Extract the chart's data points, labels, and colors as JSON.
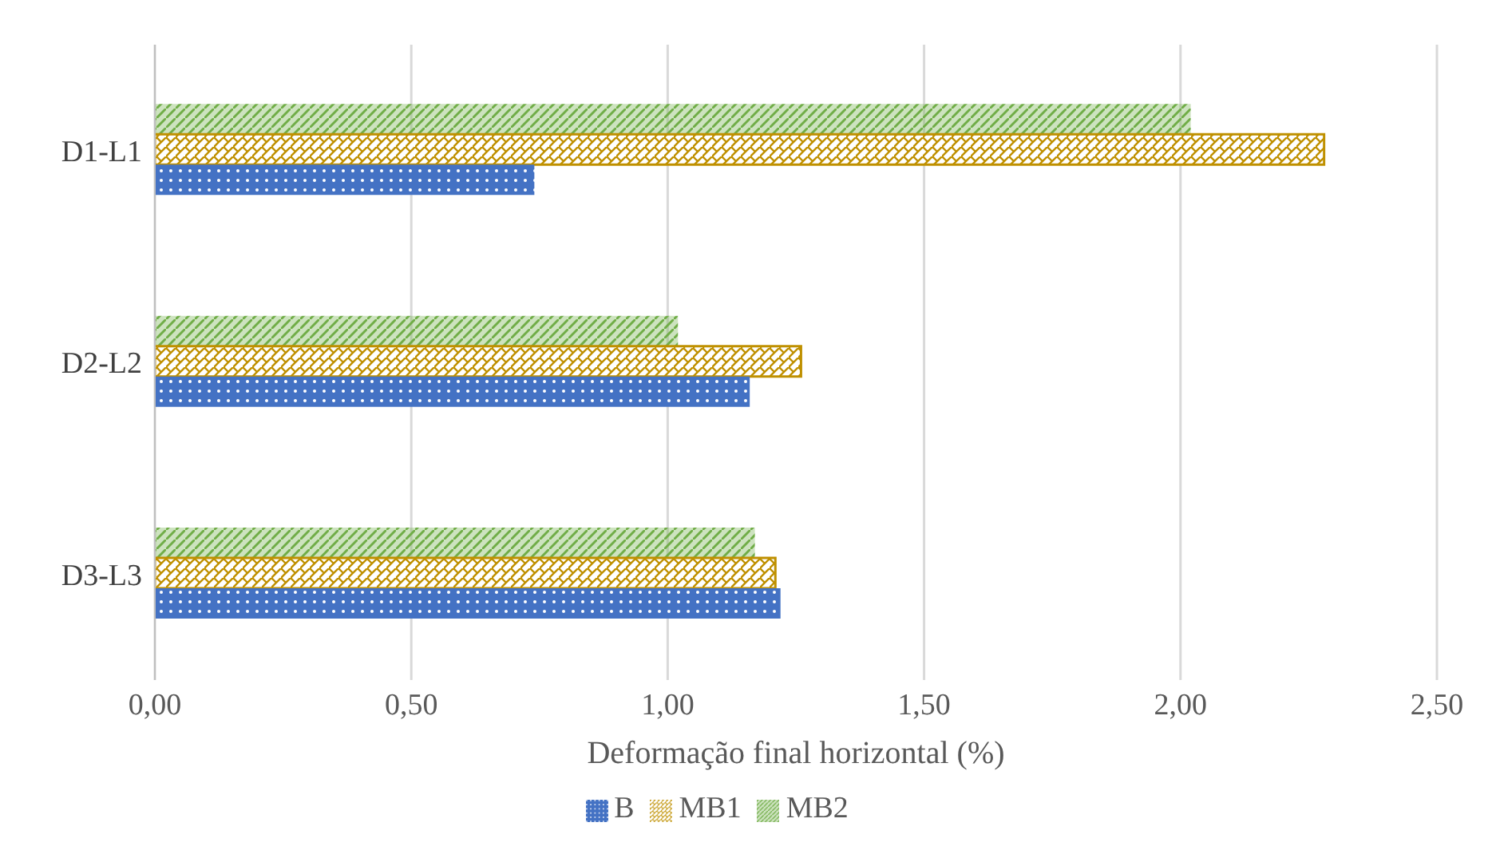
{
  "chart_data": {
    "type": "bar",
    "orientation": "horizontal",
    "xlabel": "Deformação final horizontal (%)",
    "categories": [
      "D1-L1",
      "D2-L2",
      "D3-L3"
    ],
    "series": [
      {
        "name": "MB2",
        "color": "#70ad47",
        "values": [
          2.02,
          1.02,
          1.17
        ]
      },
      {
        "name": "MB1",
        "color": "#bf9000",
        "values": [
          2.28,
          1.26,
          1.21
        ]
      },
      {
        "name": "B",
        "color": "#4472c4",
        "values": [
          0.74,
          1.16,
          1.22
        ]
      }
    ],
    "xlim": [
      0,
      2.5
    ],
    "xticks": [
      {
        "value": 0,
        "label": "0,00"
      },
      {
        "value": 0.5,
        "label": "0,50"
      },
      {
        "value": 1,
        "label": "1,00"
      },
      {
        "value": 1.5,
        "label": "1,50"
      },
      {
        "value": 2,
        "label": "2,00"
      },
      {
        "value": 2.5,
        "label": "2,50"
      }
    ],
    "grid": "x",
    "legend": "bottom"
  }
}
